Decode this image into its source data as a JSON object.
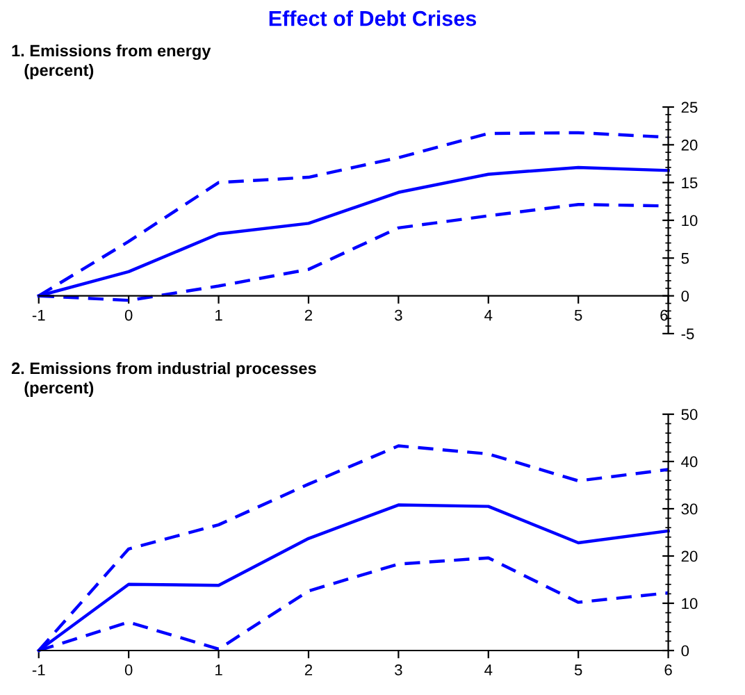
{
  "chart_data": [
    {
      "type": "line",
      "title": "Effect of Debt Crises",
      "subtitle": "1. Emissions from energy",
      "ylabel": "(percent)",
      "x": [
        -1,
        0,
        1,
        2,
        3,
        4,
        5,
        6
      ],
      "xlim": [
        -1,
        6
      ],
      "xticks": [
        -1,
        0,
        1,
        2,
        3,
        4,
        5,
        6
      ],
      "ylim": [
        -5,
        25
      ],
      "yticks": [
        -5,
        0,
        5,
        10,
        15,
        20,
        25
      ],
      "grid": false,
      "marker": "none",
      "series": [
        {
          "color": "#0000ff",
          "line_style": "dashed",
          "values": [
            0,
            7.2,
            15.0,
            15.7,
            18.3,
            21.5,
            21.6,
            21.0
          ]
        },
        {
          "color": "#0000ff",
          "line_style": "solid",
          "values": [
            0,
            3.2,
            8.2,
            9.6,
            13.7,
            16.1,
            17.0,
            16.6
          ]
        },
        {
          "color": "#0000ff",
          "line_style": "dashed",
          "values": [
            0,
            -0.6,
            1.3,
            3.5,
            9.0,
            10.6,
            12.1,
            11.9
          ]
        }
      ]
    },
    {
      "type": "line",
      "subtitle": "2. Emissions from industrial processes",
      "ylabel": "(percent)",
      "x": [
        -1,
        0,
        1,
        2,
        3,
        4,
        5,
        6
      ],
      "xlim": [
        -1,
        6
      ],
      "xticks": [
        -1,
        0,
        1,
        2,
        3,
        4,
        5,
        6
      ],
      "ylim": [
        0,
        50
      ],
      "yticks": [
        0,
        10,
        20,
        30,
        40,
        50
      ],
      "grid": false,
      "marker": "none",
      "series": [
        {
          "color": "#0000ff",
          "line_style": "dashed",
          "values": [
            0,
            21.5,
            26.6,
            35.2,
            43.3,
            41.6,
            35.9,
            38.3
          ]
        },
        {
          "color": "#0000ff",
          "line_style": "solid",
          "values": [
            0,
            14.0,
            13.8,
            23.7,
            30.8,
            30.5,
            22.8,
            25.3
          ]
        },
        {
          "color": "#0000ff",
          "line_style": "dashed",
          "values": [
            0,
            6.0,
            0.3,
            12.6,
            18.3,
            19.6,
            10.2,
            12.2
          ]
        }
      ]
    }
  ]
}
